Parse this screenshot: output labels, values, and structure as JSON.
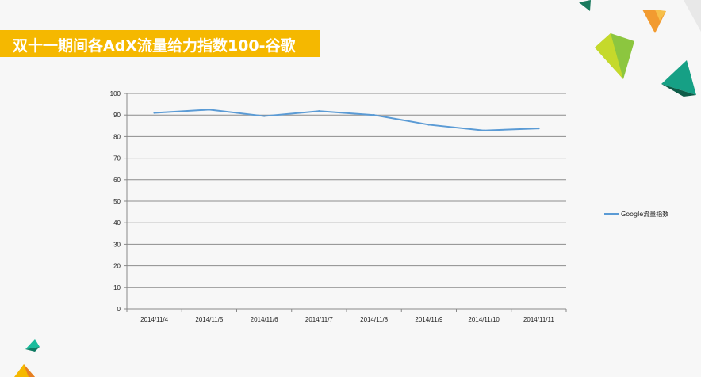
{
  "slide": {
    "title": "双十一期间各AdX流量给力指数100-谷歌",
    "title_color": "#ffffff",
    "title_bar_color": "#f5b800"
  },
  "chart_data": {
    "type": "line",
    "title": "",
    "xlabel": "",
    "ylabel": "",
    "categories": [
      "2014/11/4",
      "2014/11/5",
      "2014/11/6",
      "2014/11/7",
      "2014/11/8",
      "2014/11/9",
      "2014/11/10",
      "2014/11/11"
    ],
    "series": [
      {
        "name": "Google流量指数",
        "values": [
          91,
          92.5,
          89.5,
          91.8,
          90,
          85.5,
          82.8,
          83.8
        ],
        "color": "#5b9bd5"
      }
    ],
    "ylim": [
      0,
      100
    ],
    "yticks": [
      0,
      10,
      20,
      30,
      40,
      50,
      60,
      70,
      80,
      90,
      100
    ],
    "grid": true,
    "legend_position": "right"
  }
}
